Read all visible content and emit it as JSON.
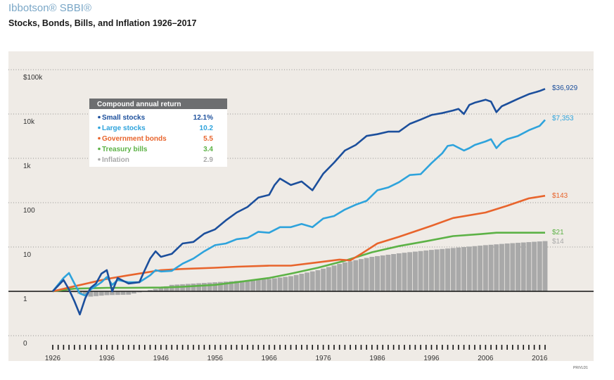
{
  "header": {
    "brand": "Ibbotson® SBBI®",
    "subtitle": "Stocks, Bonds, Bills, and Inflation 1926–2017"
  },
  "footer_code": "PR/VLD1",
  "chart_data": {
    "type": "line",
    "title": "Stocks, Bonds, Bills, and Inflation 1926–2017",
    "y_scale": "log",
    "ylim": [
      0.1,
      100000
    ],
    "ytick_labels": [
      "$100k",
      "10k",
      "1k",
      "100",
      "10",
      "1",
      "0"
    ],
    "xlim": [
      1926,
      2017
    ],
    "xtick_labels": [
      "1926",
      "1936",
      "1946",
      "1956",
      "1966",
      "1976",
      "1986",
      "1996",
      "2006",
      "2016"
    ],
    "grid": true,
    "legend": {
      "title": "Compound annual return",
      "placement": "top-left",
      "entries": [
        {
          "name": "Small stocks",
          "value": "12.1%",
          "color": "#1c4f9c"
        },
        {
          "name": "Large stocks",
          "value": "10.2",
          "color": "#2ea3dc"
        },
        {
          "name": "Government bonds",
          "value": "5.5",
          "color": "#e8642c"
        },
        {
          "name": "Treasury bills",
          "value": "3.4",
          "color": "#5cb246"
        },
        {
          "name": "Inflation",
          "value": "2.9",
          "color": "#a9a9a9"
        }
      ]
    },
    "end_labels": [
      {
        "text": "$36,929",
        "color": "#1c4f9c"
      },
      {
        "text": "$7,353",
        "color": "#2ea3dc"
      },
      {
        "text": "$143",
        "color": "#e8642c"
      },
      {
        "text": "$21",
        "color": "#5cb246"
      },
      {
        "text": "$14",
        "color": "#a9a9a9"
      }
    ],
    "series": [
      {
        "name": "Small stocks",
        "type": "line",
        "color": "#1c4f9c",
        "x": [
          1926,
          1928,
          1929,
          1930,
          1931,
          1932,
          1933,
          1934,
          1935,
          1936,
          1937,
          1938,
          1940,
          1942,
          1943,
          1944,
          1945,
          1946,
          1948,
          1950,
          1952,
          1954,
          1956,
          1958,
          1960,
          1962,
          1964,
          1966,
          1967,
          1968,
          1970,
          1972,
          1974,
          1976,
          1978,
          1980,
          1982,
          1984,
          1986,
          1988,
          1990,
          1992,
          1994,
          1996,
          1998,
          2000,
          2001,
          2002,
          2003,
          2004,
          2006,
          2007,
          2008,
          2009,
          2010,
          2012,
          2014,
          2016,
          2017
        ],
        "y": [
          1.0,
          1.8,
          1.1,
          0.6,
          0.3,
          0.7,
          1.2,
          1.5,
          2.5,
          3.0,
          1.0,
          2.0,
          1.5,
          1.6,
          3.0,
          5.5,
          8.0,
          6.0,
          7.0,
          12.0,
          13.0,
          20.0,
          25.0,
          40.0,
          60.0,
          80.0,
          130.0,
          150.0,
          250.0,
          350.0,
          250.0,
          300.0,
          190.0,
          450.0,
          800.0,
          1500.0,
          2000.0,
          3200.0,
          3500.0,
          4000.0,
          4000.0,
          6000.0,
          7500.0,
          9500.0,
          10500.0,
          12000.0,
          13000.0,
          10000.0,
          16000.0,
          18000.0,
          21000.0,
          19000.0,
          11000.0,
          15000.0,
          17000.0,
          22000.0,
          28000.0,
          33000.0,
          36929.0
        ]
      },
      {
        "name": "Large stocks",
        "type": "line",
        "color": "#2ea3dc",
        "x": [
          1926,
          1928,
          1929,
          1930,
          1931,
          1932,
          1933,
          1935,
          1936,
          1937,
          1938,
          1940,
          1942,
          1944,
          1945,
          1946,
          1948,
          1950,
          1952,
          1954,
          1956,
          1958,
          1960,
          1962,
          1964,
          1966,
          1968,
          1970,
          1972,
          1974,
          1976,
          1978,
          1980,
          1982,
          1984,
          1986,
          1988,
          1990,
          1992,
          1994,
          1996,
          1998,
          1999,
          2000,
          2002,
          2003,
          2004,
          2006,
          2007,
          2008,
          2009,
          2010,
          2012,
          2014,
          2016,
          2017
        ],
        "y": [
          1.0,
          2.0,
          2.6,
          1.5,
          0.9,
          0.8,
          1.1,
          1.6,
          2.1,
          1.4,
          1.8,
          1.6,
          1.6,
          2.3,
          3.0,
          2.8,
          2.9,
          4.2,
          5.5,
          8.0,
          11.0,
          12.0,
          15.0,
          16.0,
          22.0,
          21.0,
          28.0,
          28.0,
          33.0,
          28.0,
          44.0,
          50.0,
          70.0,
          90.0,
          110.0,
          190.0,
          220.0,
          290.0,
          420.0,
          440.0,
          780.0,
          1300.0,
          1900.0,
          2000.0,
          1500.0,
          1700.0,
          2000.0,
          2400.0,
          2700.0,
          1700.0,
          2300.0,
          2700.0,
          3200.0,
          4300.0,
          5400.0,
          7353.0
        ]
      },
      {
        "name": "Government bonds",
        "type": "line",
        "color": "#e8642c",
        "x": [
          1926,
          1930,
          1936,
          1940,
          1946,
          1950,
          1956,
          1960,
          1966,
          1970,
          1975,
          1979,
          1981,
          1983,
          1986,
          1990,
          1996,
          2000,
          2006,
          2010,
          2014,
          2017
        ],
        "y": [
          1.0,
          1.3,
          1.9,
          2.3,
          3.0,
          3.2,
          3.4,
          3.6,
          3.8,
          3.8,
          4.5,
          5.2,
          5.0,
          7.0,
          12.0,
          17.0,
          30.0,
          45.0,
          60.0,
          85.0,
          125.0,
          143.0
        ]
      },
      {
        "name": "Treasury bills",
        "type": "line",
        "color": "#5cb246",
        "x": [
          1926,
          1930,
          1936,
          1940,
          1946,
          1950,
          1956,
          1960,
          1966,
          1970,
          1975,
          1980,
          1985,
          1990,
          1995,
          2000,
          2005,
          2008,
          2010,
          2017
        ],
        "y": [
          1.0,
          1.15,
          1.2,
          1.2,
          1.22,
          1.27,
          1.4,
          1.6,
          2.0,
          2.5,
          3.4,
          4.9,
          7.6,
          10.5,
          13.5,
          17.6,
          19.5,
          21.0,
          21.0,
          21.0
        ]
      },
      {
        "name": "Inflation",
        "type": "area",
        "color": "#a9a9a9",
        "x": [
          1926,
          1930,
          1933,
          1936,
          1940,
          1942,
          1946,
          1948,
          1956,
          1966,
          1970,
          1975,
          1980,
          1985,
          1990,
          1996,
          2000,
          2006,
          2010,
          2017
        ],
        "y": [
          1.0,
          0.95,
          0.76,
          0.82,
          0.84,
          0.95,
          1.2,
          1.4,
          1.6,
          1.9,
          2.2,
          3.0,
          4.5,
          6.0,
          7.2,
          8.6,
          9.5,
          11.0,
          12.0,
          13.6
        ]
      }
    ]
  }
}
